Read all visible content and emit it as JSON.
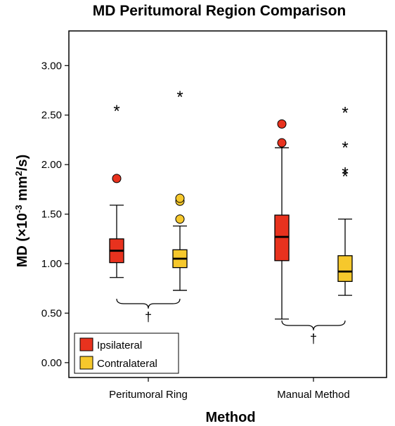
{
  "chart_data": {
    "type": "boxplot",
    "title": "MD Peritumoral Region Comparison",
    "xlabel": "Method",
    "ylabel_main": "MD (×10",
    "ylabel_sup1": "-3",
    "ylabel_mid": " mm",
    "ylabel_sup2": "2",
    "ylabel_end": "/s)",
    "ylim": [
      -0.15,
      3.35
    ],
    "yticks": [
      0.0,
      0.5,
      1.0,
      1.5,
      2.0,
      2.5,
      3.0
    ],
    "ytick_labels": [
      "0.00",
      "0.50",
      "1.00",
      "1.50",
      "2.00",
      "2.50",
      "3.00"
    ],
    "categories": [
      "Peritumoral Ring",
      "Manual Method"
    ],
    "series": [
      {
        "name": "Ipsilateral",
        "color": "#e8321e",
        "boxes": [
          {
            "whisker_low": 0.86,
            "q1": 1.01,
            "median": 1.13,
            "q3": 1.25,
            "whisker_high": 1.59,
            "outliers": [
              1.86
            ],
            "extremes": [
              2.57
            ]
          },
          {
            "whisker_low": 0.44,
            "q1": 1.03,
            "median": 1.27,
            "q3": 1.49,
            "whisker_high": 2.17,
            "outliers": [
              2.22,
              2.41
            ],
            "extremes": []
          }
        ]
      },
      {
        "name": "Contralateral",
        "color": "#f6c82c",
        "boxes": [
          {
            "whisker_low": 0.73,
            "q1": 0.96,
            "median": 1.05,
            "q3": 1.14,
            "whisker_high": 1.38,
            "outliers": [
              1.45,
              1.63,
              1.66
            ],
            "extremes": [
              2.71
            ]
          },
          {
            "whisker_low": 0.68,
            "q1": 0.82,
            "median": 0.92,
            "q3": 1.08,
            "whisker_high": 1.45,
            "outliers": [],
            "extremes": [
              1.91,
              1.94,
              2.2,
              2.55
            ]
          }
        ]
      }
    ],
    "annotations": [
      {
        "text": "†",
        "category": "Peritumoral Ring"
      },
      {
        "text": "†",
        "category": "Manual Method"
      }
    ],
    "legend_position": "bottom-left",
    "grid": false
  }
}
